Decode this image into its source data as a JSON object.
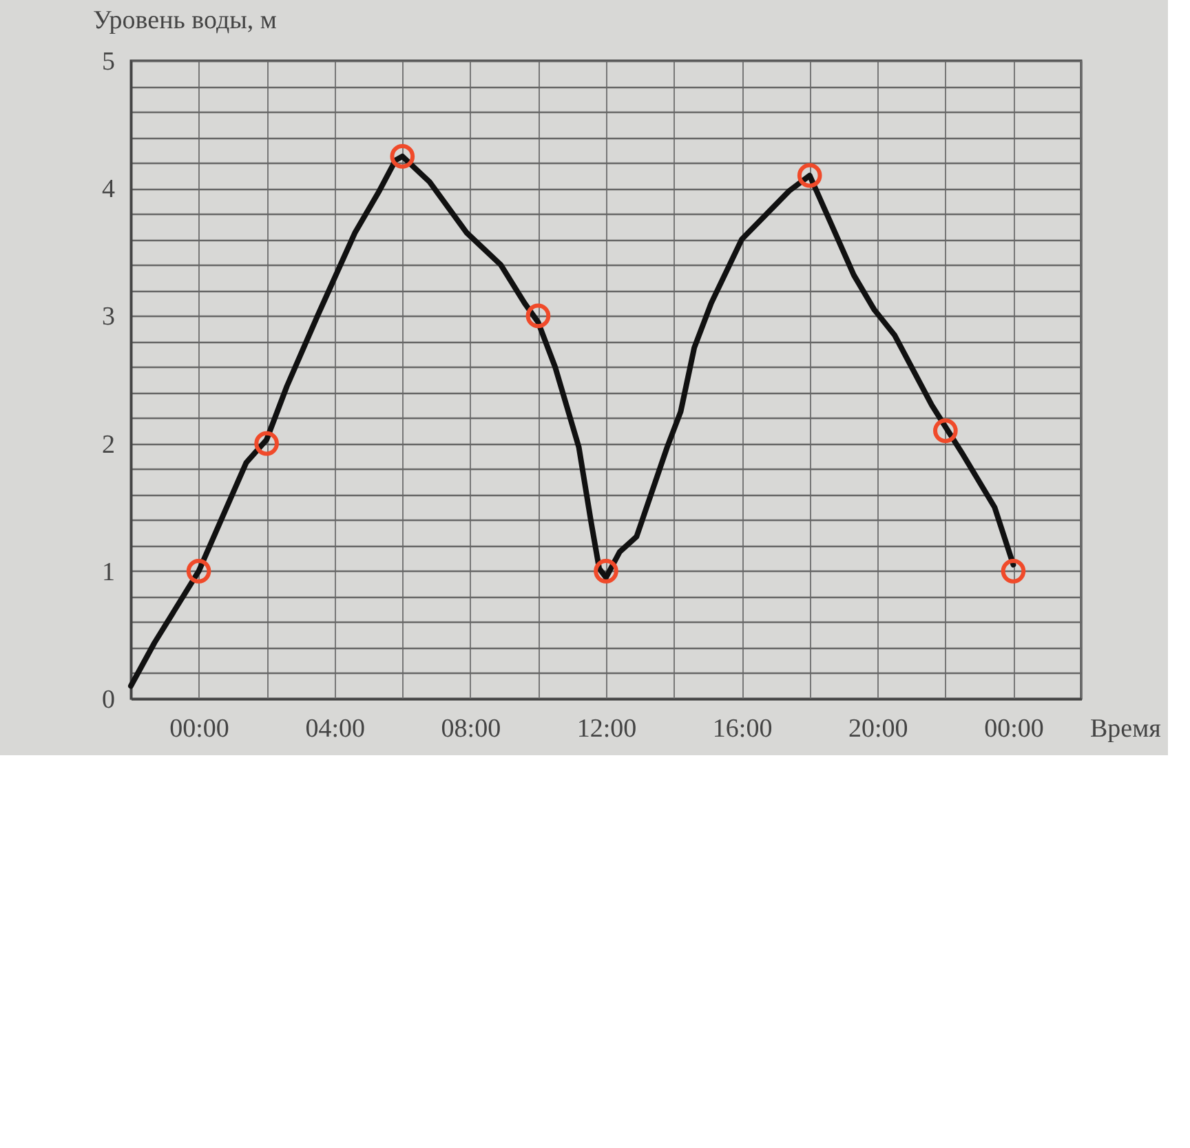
{
  "chart_data": {
    "type": "line",
    "xlabel": "Время",
    "ylabel": "Уровень воды, м",
    "xlim": [
      -2,
      26
    ],
    "xticks": [
      {
        "value": -2,
        "label": null
      },
      {
        "value": 0,
        "label": "00:00"
      },
      {
        "value": 2,
        "label": null
      },
      {
        "value": 4,
        "label": "04:00"
      },
      {
        "value": 6,
        "label": null
      },
      {
        "value": 8,
        "label": "08:00"
      },
      {
        "value": 10,
        "label": null
      },
      {
        "value": 12,
        "label": "12:00"
      },
      {
        "value": 14,
        "label": null
      },
      {
        "value": 16,
        "label": "16:00"
      },
      {
        "value": 18,
        "label": null
      },
      {
        "value": 20,
        "label": "20:00"
      },
      {
        "value": 22,
        "label": null
      },
      {
        "value": 24,
        "label": "00:00"
      },
      {
        "value": 26,
        "label": null
      }
    ],
    "ylim": [
      0,
      5
    ],
    "yticks": [
      0,
      {
        "value": 0.2,
        "label": null
      },
      {
        "value": 0.4,
        "label": null
      },
      {
        "value": 0.6,
        "label": null
      },
      {
        "value": 0.8,
        "label": null
      },
      1,
      {
        "value": 1.2,
        "label": null
      },
      {
        "value": 1.4,
        "label": null
      },
      {
        "value": 1.6,
        "label": null
      },
      {
        "value": 1.8,
        "label": null
      },
      2,
      {
        "value": 2.2,
        "label": null
      },
      {
        "value": 2.4,
        "label": null
      },
      {
        "value": 2.6,
        "label": null
      },
      {
        "value": 2.8,
        "label": null
      },
      3,
      {
        "value": 3.2,
        "label": null
      },
      {
        "value": 3.4,
        "label": null
      },
      {
        "value": 3.6,
        "label": null
      },
      {
        "value": 3.8,
        "label": null
      },
      4,
      {
        "value": 4.2,
        "label": null
      },
      {
        "value": 4.4,
        "label": null
      },
      {
        "value": 4.6,
        "label": null
      },
      {
        "value": 4.8,
        "label": null
      },
      5
    ],
    "grid": true,
    "series": [
      {
        "color": "#111111",
        "marker": "none",
        "x": [
          -2,
          -1.3,
          0,
          1.4,
          2,
          2.6,
          3.5,
          4.6,
          5.3,
          5.8,
          6,
          6.8,
          7.9,
          8.9,
          9.6,
          10,
          10.5,
          11.2,
          11.55,
          11.8,
          12,
          12.4,
          12.9,
          13.8,
          14.2,
          14.6,
          15.1,
          16,
          17.4,
          18,
          18.5,
          19.3,
          19.9,
          20.5,
          21.6,
          22.5,
          23.45,
          24
        ],
        "values": [
          0.1,
          0.44,
          1.0,
          1.85,
          2.03,
          2.45,
          3.0,
          3.65,
          3.97,
          4.22,
          4.25,
          4.05,
          3.65,
          3.4,
          3.1,
          2.95,
          2.6,
          1.97,
          1.4,
          1.02,
          0.95,
          1.15,
          1.27,
          1.97,
          2.25,
          2.75,
          3.1,
          3.6,
          3.98,
          4.1,
          3.8,
          3.32,
          3.05,
          2.85,
          2.3,
          1.92,
          1.5,
          1.05
        ]
      },
      {
        "type": "scatter",
        "color": "#f04a2a",
        "marker": "circle",
        "x": [
          0,
          2,
          6,
          10,
          12,
          18,
          22,
          24
        ],
        "values": [
          1,
          2,
          4.25,
          3,
          1,
          4.1,
          2.1,
          1
        ]
      }
    ]
  }
}
